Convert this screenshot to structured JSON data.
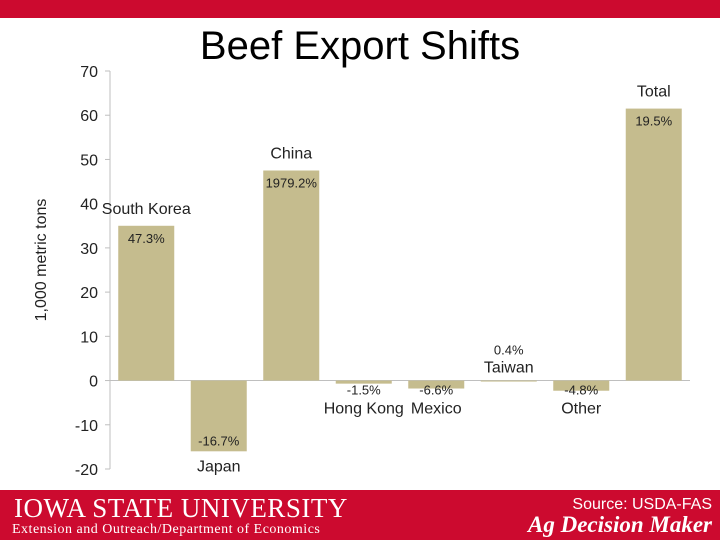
{
  "title": "Beef Export Shifts",
  "chart_data": {
    "type": "bar",
    "title": "Beef Export Shifts",
    "ylabel": "1,000 metric tons",
    "xlabel": "",
    "ylim": [
      -20,
      70
    ],
    "yticks": [
      -20,
      -10,
      0,
      10,
      20,
      30,
      40,
      50,
      60,
      70
    ],
    "grid": false,
    "categories": [
      "South Korea",
      "Japan",
      "China",
      "Hong Kong",
      "Mexico",
      "Taiwan",
      "Other",
      "Total"
    ],
    "values": [
      35,
      -16,
      47.5,
      -0.7,
      -1.8,
      0,
      -2.3,
      61.5
    ],
    "data_labels": [
      "47.3%",
      "-16.7%",
      "1979.2%",
      "-1.5%",
      "-6.6%",
      "0.4%",
      "-4.8%",
      "19.5%"
    ],
    "bar_color": "#c5bc8e"
  },
  "footer": {
    "university": "Iowa State University",
    "department": "Extension and Outreach/Department of Economics",
    "source": "Source: USDA-FAS",
    "brand": "Ag Decision Maker"
  },
  "colors": {
    "header": "#cc0a2f",
    "bar": "#c5bc8e"
  }
}
